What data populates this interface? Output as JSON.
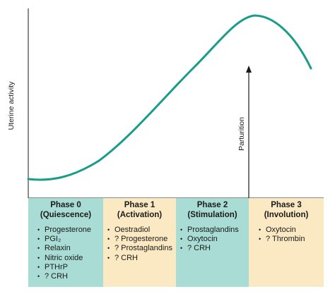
{
  "chart_data": {
    "type": "line",
    "ylabel": "Uterine activity",
    "xlabel": "",
    "line_color": "#1a9c8a",
    "annotation": {
      "label": "Parturition"
    }
  },
  "phases": [
    {
      "title": "Phase 0",
      "subtitle": "(Quiescence)",
      "color": "#a8dcd4",
      "items": [
        "Progesterone",
        "PGI₂",
        "Relaxin",
        "Nitric oxide",
        "PTHrP",
        "? CRH"
      ]
    },
    {
      "title": "Phase 1",
      "subtitle": "(Activation)",
      "color": "#fbe9c3",
      "items": [
        "Oestradiol",
        "? Progesterone",
        "? Prostaglandins",
        "? CRH"
      ]
    },
    {
      "title": "Phase 2",
      "subtitle": "(Stimulation)",
      "color": "#a8dcd4",
      "items": [
        "Prostaglandins",
        "Oxytocin",
        "? CRH"
      ]
    },
    {
      "title": "Phase 3",
      "subtitle": "(Involution)",
      "color": "#fbe9c3",
      "items": [
        "Oxytocin",
        "? Thrombin"
      ]
    }
  ]
}
